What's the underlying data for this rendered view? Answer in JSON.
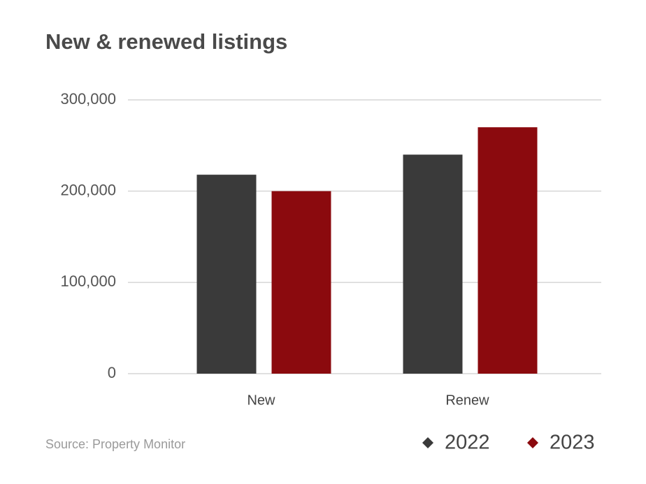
{
  "chart_data": {
    "type": "bar",
    "title": "New & renewed listings",
    "categories": [
      "New",
      "Renew"
    ],
    "series": [
      {
        "name": "2022",
        "color": "#3a3a3a",
        "values": [
          218000,
          240000
        ]
      },
      {
        "name": "2023",
        "color": "#8b0a0e",
        "values": [
          200000,
          270000
        ]
      }
    ],
    "ylim": [
      0,
      300000
    ],
    "yticks": [
      0,
      {
        "value": 100000,
        "label": "100,000"
      },
      {
        "value": 200000,
        "label": "200,000"
      },
      {
        "value": 300000,
        "label": "300,000"
      }
    ],
    "grid": true,
    "legend": "bottom-right",
    "source": "Source: Property Monitor"
  }
}
